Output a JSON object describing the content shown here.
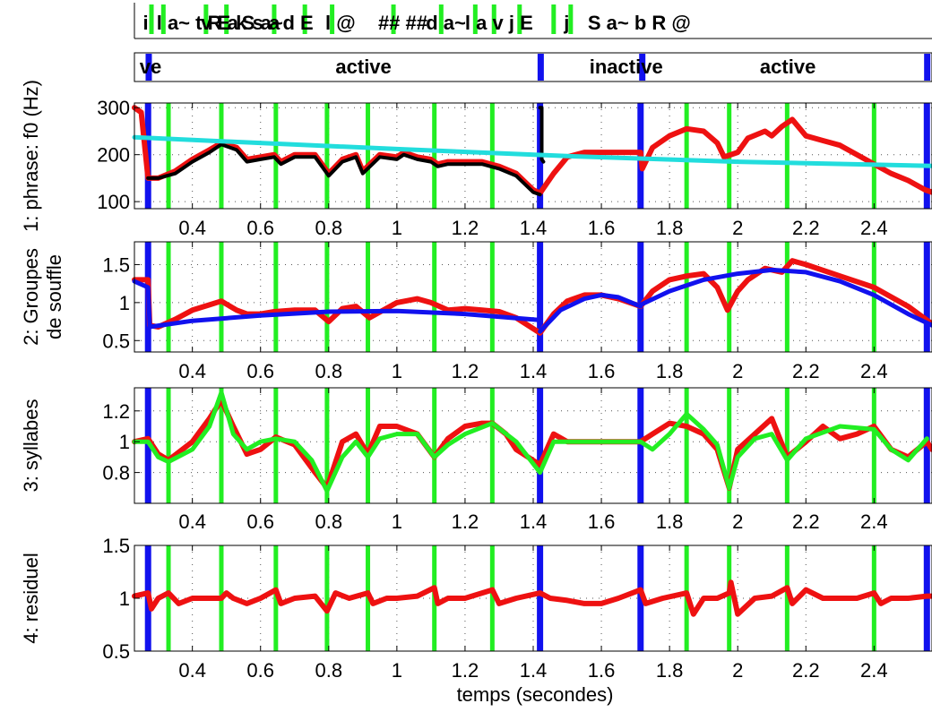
{
  "figure": {
    "x_label": "temps (secondes)",
    "overlap_label_fragment": "... (... ...)",
    "x_range": [
      0.23,
      2.57
    ],
    "x_ticks": [
      0.4,
      0.6,
      0.8,
      1,
      1.2,
      1.4,
      1.6,
      1.8,
      2,
      2.2,
      2.4
    ],
    "x_tick_labels": [
      "0.4",
      "0.6",
      "0.8",
      "1",
      "1.2",
      "1.4",
      "1.6",
      "1.8",
      "2",
      "2.2",
      "2.4"
    ],
    "phoneme_strip": {
      "text_segments": [
        {
          "x": 0.255,
          "text": "i"
        },
        {
          "x": 0.295,
          "text": "l a~ t R a"
        },
        {
          "x": 0.425,
          "text": "v E k s a"
        },
        {
          "x": 0.545,
          "text": "S a~"
        },
        {
          "x": 0.665,
          "text": "d E"
        },
        {
          "x": 0.79,
          "text": "l @"
        },
        {
          "x": 0.945,
          "text": "## ##"
        },
        {
          "x": 1.085,
          "text": "d a~"
        },
        {
          "x": 1.2,
          "text": "l a v j E"
        },
        {
          "x": 1.49,
          "text": "j"
        },
        {
          "x": 1.56,
          "text": "S a~ b R @"
        }
      ],
      "green_marks": [
        0.28,
        0.315,
        0.44,
        0.5,
        0.64,
        0.73,
        0.81,
        0.99,
        1.13,
        1.23,
        1.285,
        1.36,
        1.46,
        1.51
      ]
    },
    "activity_strip": {
      "labels": [
        {
          "x": 0.245,
          "text": "ve"
        },
        {
          "x": 0.82,
          "text": "active"
        },
        {
          "x": 1.565,
          "text": "inactive"
        },
        {
          "x": 2.065,
          "text": "active"
        }
      ],
      "blue_marks": [
        0.272,
        1.422,
        1.72,
        2.556
      ]
    },
    "boundaries_blue": [
      0.27,
      1.42,
      1.715,
      2.555
    ],
    "boundaries_green": [
      0.33,
      0.485,
      0.645,
      0.795,
      0.915,
      1.11,
      1.28,
      1.85,
      1.975,
      2.145,
      2.4
    ],
    "colors": {
      "red": "#ee1111",
      "black": "#000000",
      "cyan": "#22dddd",
      "blue": "#1111ee",
      "green": "#22ee22",
      "grid": "#555555"
    }
  },
  "chart_data": [
    {
      "type": "line",
      "ylabel": "1: phrase: f0 (Hz)",
      "ylim": [
        85,
        310
      ],
      "y_ticks": [
        100,
        200,
        300
      ],
      "y_tick_labels": [
        "100",
        "200",
        "300"
      ],
      "grid": true,
      "series": [
        {
          "color": "red",
          "x": [
            0.23,
            0.25,
            0.27,
            0.275,
            0.3,
            0.35,
            0.4,
            0.45,
            0.485,
            0.53,
            0.56,
            0.6,
            0.64,
            0.66,
            0.7,
            0.76,
            0.8,
            0.84,
            0.88,
            0.9,
            0.95,
            1.0,
            1.02,
            1.06,
            1.1,
            1.12,
            1.15,
            1.2,
            1.25,
            1.3,
            1.35,
            1.4,
            1.42,
            1.46,
            1.5,
            1.55,
            1.6,
            1.65,
            1.7,
            1.715,
            1.72,
            1.75,
            1.8,
            1.85,
            1.9,
            1.94,
            1.96,
            2.0,
            2.03,
            2.08,
            2.1,
            2.13,
            2.16,
            2.2,
            2.25,
            2.3,
            2.35,
            2.4,
            2.45,
            2.5,
            2.55,
            2.57
          ],
          "y": [
            300,
            290,
            150,
            150,
            150,
            165,
            190,
            210,
            225,
            215,
            190,
            195,
            200,
            185,
            200,
            200,
            160,
            190,
            200,
            165,
            200,
            195,
            205,
            195,
            190,
            180,
            185,
            185,
            185,
            175,
            160,
            125,
            118,
            160,
            195,
            205,
            205,
            205,
            205,
            205,
            170,
            215,
            240,
            255,
            250,
            225,
            195,
            205,
            235,
            250,
            240,
            260,
            275,
            240,
            230,
            220,
            200,
            180,
            160,
            145,
            125,
            120
          ]
        },
        {
          "color": "black",
          "x": [
            0.27,
            0.3,
            0.35,
            0.4,
            0.45,
            0.485,
            0.53,
            0.56,
            0.6,
            0.64,
            0.66,
            0.7,
            0.76,
            0.8,
            0.84,
            0.88,
            0.9,
            0.95,
            1.0,
            1.02,
            1.06,
            1.1,
            1.12,
            1.15,
            1.2,
            1.25,
            1.3,
            1.35,
            1.4,
            1.42
          ],
          "y": [
            150,
            150,
            160,
            185,
            205,
            222,
            210,
            185,
            190,
            195,
            180,
            195,
            195,
            155,
            185,
            195,
            160,
            195,
            190,
            200,
            190,
            185,
            175,
            180,
            180,
            180,
            170,
            155,
            120,
            115
          ]
        },
        {
          "color": "black",
          "x": [
            1.42,
            1.425,
            1.425,
            1.43
          ],
          "y": [
            300,
            300,
            190,
            185
          ]
        },
        {
          "color": "cyan",
          "x": [
            0.23,
            0.5,
            1.0,
            1.5,
            2.0,
            2.57
          ],
          "y": [
            237,
            228,
            212,
            197,
            185,
            176
          ]
        }
      ]
    },
    {
      "type": "line",
      "ylabel": "2: Groupes de souffle",
      "ylim": [
        0.35,
        1.8
      ],
      "y_ticks": [
        0.5,
        1,
        1.5
      ],
      "y_tick_labels": [
        "0.5",
        "1",
        "1.5"
      ],
      "grid": true,
      "series": [
        {
          "color": "red",
          "x": [
            0.23,
            0.27,
            0.275,
            0.3,
            0.35,
            0.4,
            0.45,
            0.485,
            0.53,
            0.56,
            0.6,
            0.64,
            0.7,
            0.76,
            0.8,
            0.84,
            0.88,
            0.92,
            1.0,
            1.06,
            1.1,
            1.15,
            1.2,
            1.25,
            1.3,
            1.35,
            1.42,
            1.46,
            1.5,
            1.55,
            1.6,
            1.65,
            1.715,
            1.75,
            1.8,
            1.85,
            1.9,
            1.94,
            1.97,
            2.0,
            2.03,
            2.08,
            2.13,
            2.16,
            2.2,
            2.3,
            2.4,
            2.5,
            2.57
          ],
          "y": [
            1.3,
            1.3,
            0.7,
            0.68,
            0.78,
            0.9,
            0.97,
            1.02,
            0.9,
            0.85,
            0.85,
            0.88,
            0.9,
            0.9,
            0.75,
            0.92,
            0.95,
            0.8,
            1.0,
            1.05,
            1.0,
            0.9,
            0.92,
            0.9,
            0.88,
            0.8,
            0.6,
            0.85,
            1.02,
            1.1,
            1.1,
            1.05,
            0.95,
            1.15,
            1.3,
            1.35,
            1.38,
            1.2,
            0.9,
            1.15,
            1.3,
            1.45,
            1.4,
            1.55,
            1.5,
            1.35,
            1.2,
            0.95,
            0.72
          ]
        },
        {
          "color": "blue",
          "x": [
            0.23,
            0.27,
            0.275,
            0.4,
            0.6,
            0.8,
            1.0,
            1.2,
            1.42
          ],
          "y": [
            1.28,
            1.2,
            0.68,
            0.76,
            0.83,
            0.88,
            0.89,
            0.85,
            0.77
          ]
        },
        {
          "color": "blue",
          "x": [
            1.42,
            1.48,
            1.55,
            1.6,
            1.65,
            1.715
          ],
          "y": [
            0.62,
            0.9,
            1.05,
            1.1,
            1.07,
            0.95
          ]
        },
        {
          "color": "blue",
          "x": [
            1.715,
            1.8,
            1.9,
            2.0,
            2.1,
            2.2,
            2.3,
            2.4,
            2.5,
            2.57
          ],
          "y": [
            0.97,
            1.15,
            1.3,
            1.38,
            1.43,
            1.4,
            1.28,
            1.1,
            0.85,
            0.7
          ]
        }
      ]
    },
    {
      "type": "line",
      "ylabel": "3: syllabes",
      "ylim": [
        0.6,
        1.35
      ],
      "y_ticks": [
        0.8,
        1,
        1.2
      ],
      "y_tick_labels": [
        "0.8",
        "1",
        "1.2"
      ],
      "grid": true,
      "series": [
        {
          "color": "red",
          "x": [
            0.23,
            0.27,
            0.3,
            0.33,
            0.4,
            0.45,
            0.485,
            0.52,
            0.56,
            0.6,
            0.645,
            0.7,
            0.76,
            0.795,
            0.84,
            0.88,
            0.915,
            0.95,
            1.0,
            1.06,
            1.11,
            1.15,
            1.2,
            1.25,
            1.28,
            1.32,
            1.35,
            1.42,
            1.46,
            1.5,
            1.55,
            1.6,
            1.65,
            1.715,
            1.75,
            1.8,
            1.85,
            1.9,
            1.94,
            1.975,
            2.0,
            2.05,
            2.1,
            2.145,
            2.2,
            2.25,
            2.3,
            2.35,
            2.4,
            2.45,
            2.5,
            2.555,
            2.57
          ],
          "y": [
            1.0,
            1.02,
            0.92,
            0.88,
            1.0,
            1.15,
            1.27,
            1.1,
            0.92,
            0.95,
            1.03,
            0.98,
            0.8,
            0.7,
            1.0,
            1.05,
            0.92,
            1.1,
            1.1,
            1.05,
            0.9,
            1.02,
            1.1,
            1.12,
            1.12,
            1.05,
            0.95,
            0.85,
            1.05,
            1.0,
            1.0,
            1.0,
            1.0,
            1.0,
            1.05,
            1.12,
            1.1,
            1.05,
            0.95,
            0.7,
            0.95,
            1.05,
            1.15,
            0.9,
            1.0,
            1.1,
            1.02,
            1.05,
            1.1,
            0.95,
            0.9,
            1.0,
            0.95
          ]
        },
        {
          "color": "green",
          "x": [
            0.23,
            0.27,
            0.3,
            0.33,
            0.4,
            0.45,
            0.485,
            0.52,
            0.56,
            0.6,
            0.645,
            0.7,
            0.75,
            0.795,
            0.84,
            0.88,
            0.915,
            0.95,
            1.0,
            1.06,
            1.11,
            1.15,
            1.2,
            1.28,
            1.35,
            1.42,
            1.46,
            1.5,
            1.6,
            1.715,
            1.75,
            1.8,
            1.85,
            1.9,
            1.94,
            1.975,
            2.0,
            2.05,
            2.1,
            2.145,
            2.2,
            2.3,
            2.4,
            2.45,
            2.5,
            2.555
          ],
          "y": [
            1.0,
            1.0,
            0.9,
            0.87,
            0.95,
            1.1,
            1.32,
            1.05,
            0.95,
            1.0,
            1.02,
            1.0,
            0.88,
            0.68,
            0.9,
            1.0,
            0.9,
            1.02,
            1.05,
            1.05,
            0.9,
            0.98,
            1.05,
            1.12,
            1.0,
            0.8,
            1.0,
            1.0,
            1.0,
            1.0,
            0.95,
            1.05,
            1.18,
            1.08,
            0.98,
            0.7,
            0.9,
            1.02,
            1.05,
            0.88,
            1.02,
            1.1,
            1.08,
            0.95,
            0.88,
            1.02
          ]
        }
      ]
    },
    {
      "type": "line",
      "ylabel": "4: residuel",
      "ylim": [
        0.5,
        1.5
      ],
      "y_ticks": [
        0.5,
        1,
        1.5
      ],
      "y_tick_labels": [
        "0.5",
        "1",
        "1.5"
      ],
      "grid": true,
      "series": [
        {
          "color": "red",
          "x": [
            0.23,
            0.27,
            0.28,
            0.3,
            0.33,
            0.36,
            0.4,
            0.45,
            0.485,
            0.5,
            0.52,
            0.56,
            0.6,
            0.645,
            0.66,
            0.7,
            0.76,
            0.795,
            0.82,
            0.86,
            0.915,
            0.93,
            0.97,
            1.0,
            1.06,
            1.11,
            1.12,
            1.15,
            1.2,
            1.28,
            1.3,
            1.35,
            1.42,
            1.45,
            1.5,
            1.55,
            1.6,
            1.65,
            1.715,
            1.73,
            1.78,
            1.85,
            1.87,
            1.9,
            1.94,
            1.975,
            1.98,
            2.0,
            2.05,
            2.1,
            2.145,
            2.16,
            2.2,
            2.25,
            2.3,
            2.35,
            2.4,
            2.42,
            2.45,
            2.5,
            2.555,
            2.57
          ],
          "y": [
            1.02,
            1.05,
            0.9,
            1.0,
            1.05,
            0.95,
            1.0,
            1.0,
            1.0,
            1.05,
            1.0,
            0.95,
            1.0,
            1.08,
            0.95,
            1.0,
            1.02,
            0.88,
            1.05,
            1.0,
            1.05,
            0.95,
            1.0,
            1.0,
            1.02,
            1.1,
            0.95,
            1.0,
            1.0,
            1.08,
            0.95,
            1.0,
            1.05,
            1.0,
            0.98,
            0.95,
            0.95,
            1.0,
            1.08,
            0.95,
            1.0,
            1.05,
            0.85,
            1.0,
            1.0,
            1.05,
            1.15,
            0.85,
            1.0,
            1.02,
            1.1,
            0.95,
            1.08,
            1.0,
            1.0,
            1.0,
            1.05,
            0.95,
            1.0,
            1.0,
            1.02,
            1.02
          ]
        }
      ]
    }
  ]
}
